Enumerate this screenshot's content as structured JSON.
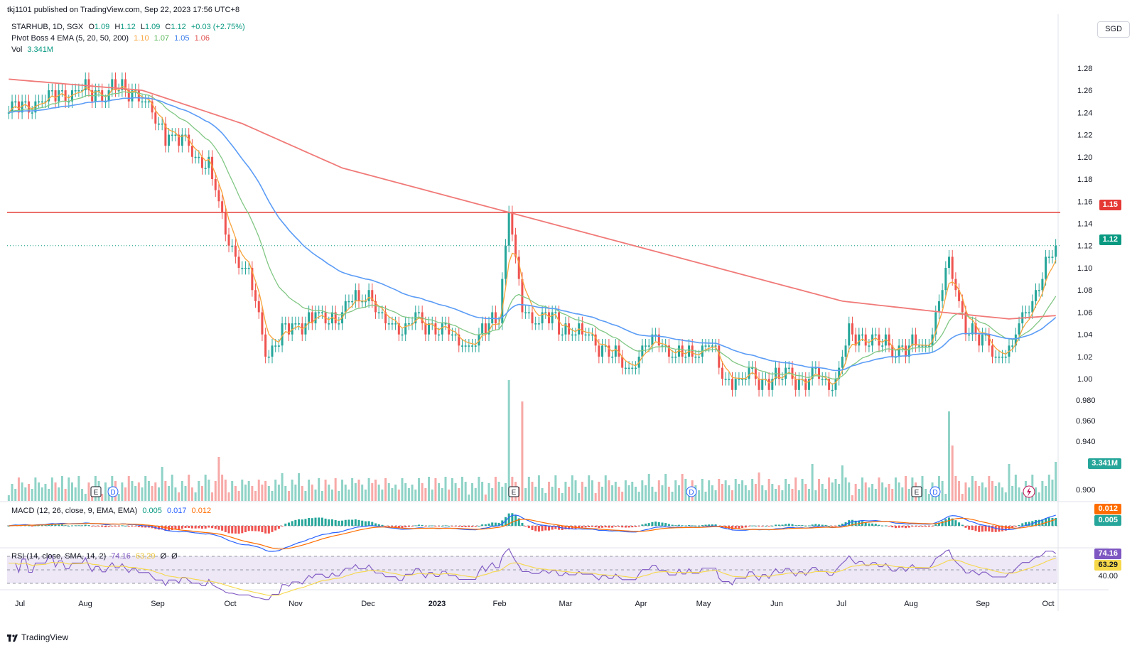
{
  "publisher_line": "tkj1101 published on TradingView.com, Sep 22, 2023 17:56 UTC+8",
  "legend": {
    "symbol_line": "STARHUB, 1D, SGX",
    "open_label": "O",
    "open": "1.09",
    "high_label": "H",
    "high": "1.12",
    "low_label": "L",
    "low": "1.09",
    "close_label": "C",
    "close": "1.12",
    "change": "+0.03 (+2.75%)",
    "ema_label": "Pivot Boss 4 EMA (5, 20, 50, 200)",
    "ema_values": [
      "1.10",
      "1.07",
      "1.05",
      "1.06"
    ],
    "vol_label": "Vol",
    "vol_value": "3.341M",
    "macd_label": "MACD (12, 26, close, 9, EMA, EMA)",
    "macd_values": [
      "0.005",
      "0.017",
      "0.012"
    ],
    "rsi_label": "RSI (14, close, SMA, 14, 2)",
    "rsi_values": [
      "74.16",
      "63.29",
      "Ø",
      "Ø"
    ]
  },
  "currency_button": "SGD",
  "badges": {
    "resistance": "1.15",
    "last_price": "1.12",
    "volume": "3.341M",
    "macd_signal": "0.012",
    "macd_line": "0.005",
    "rsi": "74.16",
    "rsi_ma": "63.29",
    "rsi_level": "40.00"
  },
  "footer_brand": "TradingView",
  "colors": {
    "up": "#26a69a",
    "down": "#ef5350",
    "ema5": "#f7a33b",
    "ema20": "#81c784",
    "ema50": "#5b9cf6",
    "ema200": "#f07a78",
    "resistance": "#e53935",
    "macd": "#2962ff",
    "signal": "#ff6d00",
    "rsi": "#7e57c2",
    "rsi_ma": "#f6d84a"
  },
  "chart_data": {
    "type": "candlestick",
    "symbol": "STARHUB",
    "interval": "1D",
    "price_axis": {
      "ticks": [
        "1.28",
        "1.26",
        "1.24",
        "1.22",
        "1.20",
        "1.18",
        "1.16",
        "1.14",
        "1.12",
        "1.10",
        "1.08",
        "1.06",
        "1.04",
        "1.02",
        "1.00"
      ],
      "range": [
        0.995,
        1.285
      ]
    },
    "volume_axis_ticks": [
      "0.980",
      "0.960",
      "0.940",
      "0.900"
    ],
    "time_axis": [
      "Jul",
      "Aug",
      "Sep",
      "Oct",
      "Nov",
      "Dec",
      "2023",
      "Feb",
      "Mar",
      "Apr",
      "May",
      "Jun",
      "Jul",
      "Aug",
      "Sep",
      "Oct"
    ],
    "resistance_level": 1.15,
    "last_close": 1.12,
    "price_anchors": [
      {
        "date": "Jul 2022",
        "close": 1.24
      },
      {
        "date": "Aug 2022",
        "close": 1.26
      },
      {
        "date": "Sep 2022",
        "close": 1.22
      },
      {
        "date": "Oct 2022",
        "close": 1.12
      },
      {
        "date": "Oct 2022 low",
        "close": 1.02
      },
      {
        "date": "Nov 2022",
        "close": 1.05
      },
      {
        "date": "Dec 2022",
        "close": 1.08
      },
      {
        "date": "Jan 2023",
        "close": 1.03
      },
      {
        "date": "Feb 2023 spike",
        "close": 1.15
      },
      {
        "date": "Feb 2023",
        "close": 1.06
      },
      {
        "date": "Mar 2023",
        "close": 1.01
      },
      {
        "date": "Apr 2023",
        "close": 1.04
      },
      {
        "date": "May 2023",
        "close": 1.0
      },
      {
        "date": "Jun 2023",
        "close": 1.0
      },
      {
        "date": "Jul 2023",
        "close": 1.03
      },
      {
        "date": "Aug 2023 spike",
        "close": 1.1
      },
      {
        "date": "Sep 2023 low",
        "close": 1.01
      },
      {
        "date": "Sep 22 2023",
        "close": 1.12
      }
    ],
    "ema200_anchors": [
      {
        "date": "Jul 2022",
        "value": 1.27
      },
      {
        "date": "Oct 2022",
        "value": 1.23
      },
      {
        "date": "Jan 2023",
        "value": 1.15
      },
      {
        "date": "Apr 2023",
        "value": 1.1
      },
      {
        "date": "Jul 2023",
        "value": 1.06
      },
      {
        "date": "Sep 22 2023",
        "value": 1.06
      }
    ],
    "events": [
      "E",
      "D",
      "E",
      "D",
      "E",
      "D"
    ]
  }
}
